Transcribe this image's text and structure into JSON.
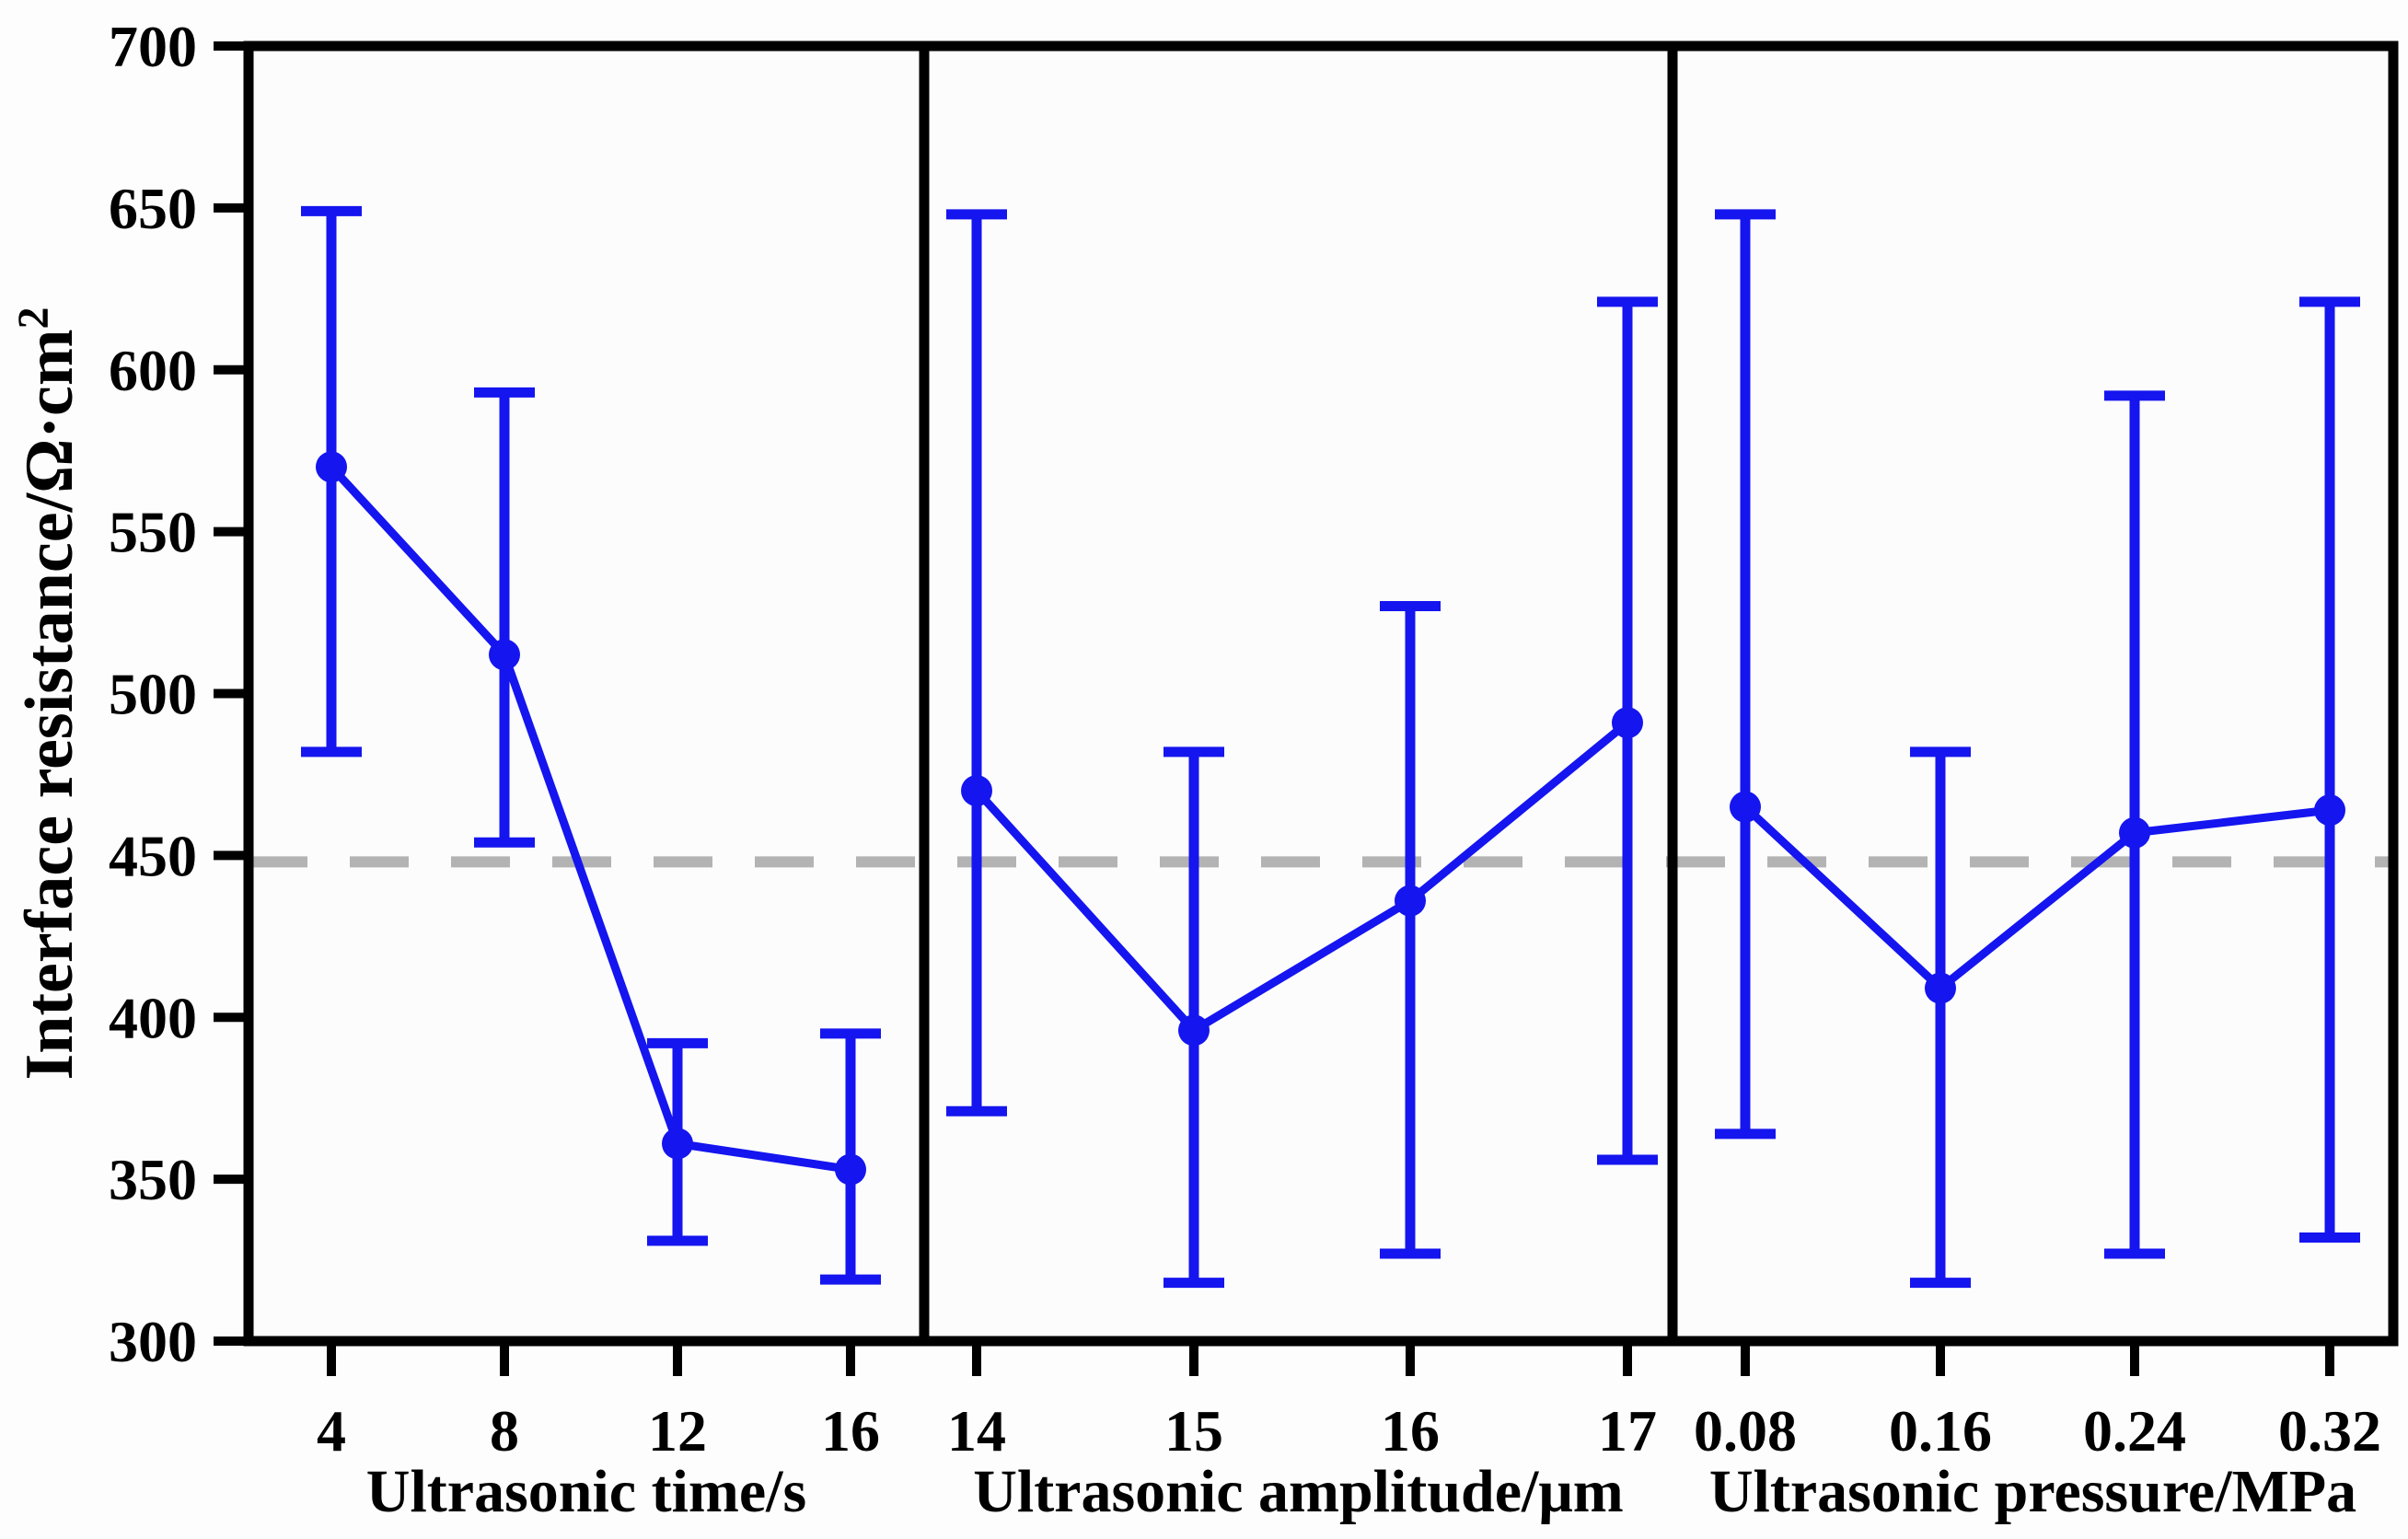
{
  "chart_data": {
    "type": "line",
    "title": "",
    "ylabel": "Interface resistance/Ω·cm²",
    "ylabel_main": "Interface resistance/Ω·cm",
    "ylabel_sup": "2",
    "ylim": [
      300,
      700
    ],
    "ytick_step": 50,
    "yticks": [
      300,
      350,
      400,
      450,
      500,
      550,
      600,
      650,
      700
    ],
    "grid": false,
    "legend": "none",
    "reference_line": {
      "y": 448,
      "style": "dashed",
      "color": "#b3b3b3"
    },
    "series_style": {
      "line_color": "#1515ef",
      "marker": "filled-circle",
      "error_bars": true,
      "axis_color": "#000000"
    },
    "panels": [
      {
        "xlabel": "Ultrasonic time/s",
        "x_labels": [
          "4",
          "8",
          "12",
          "16"
        ],
        "x": [
          4,
          8,
          12,
          16
        ],
        "y": [
          570,
          512,
          361,
          353
        ],
        "y_upper": [
          649,
          593,
          392,
          395
        ],
        "y_lower": [
          482,
          454,
          331,
          319
        ]
      },
      {
        "xlabel": "Ultrasonic amplitude/μm",
        "x_labels": [
          "14",
          "15",
          "16",
          "17"
        ],
        "x": [
          14,
          15,
          16,
          17
        ],
        "y": [
          470,
          396,
          436,
          491
        ],
        "y_upper": [
          648,
          482,
          527,
          621
        ],
        "y_lower": [
          371,
          318,
          327,
          356
        ]
      },
      {
        "xlabel": "Ultrasonic pressure/MPa",
        "x_labels": [
          "0.08",
          "0.16",
          "0.24",
          "0.32"
        ],
        "x": [
          0.08,
          0.16,
          0.24,
          0.32
        ],
        "y": [
          465,
          409,
          457,
          464
        ],
        "y_upper": [
          648,
          482,
          592,
          621
        ],
        "y_lower": [
          364,
          318,
          327,
          332
        ]
      }
    ]
  }
}
